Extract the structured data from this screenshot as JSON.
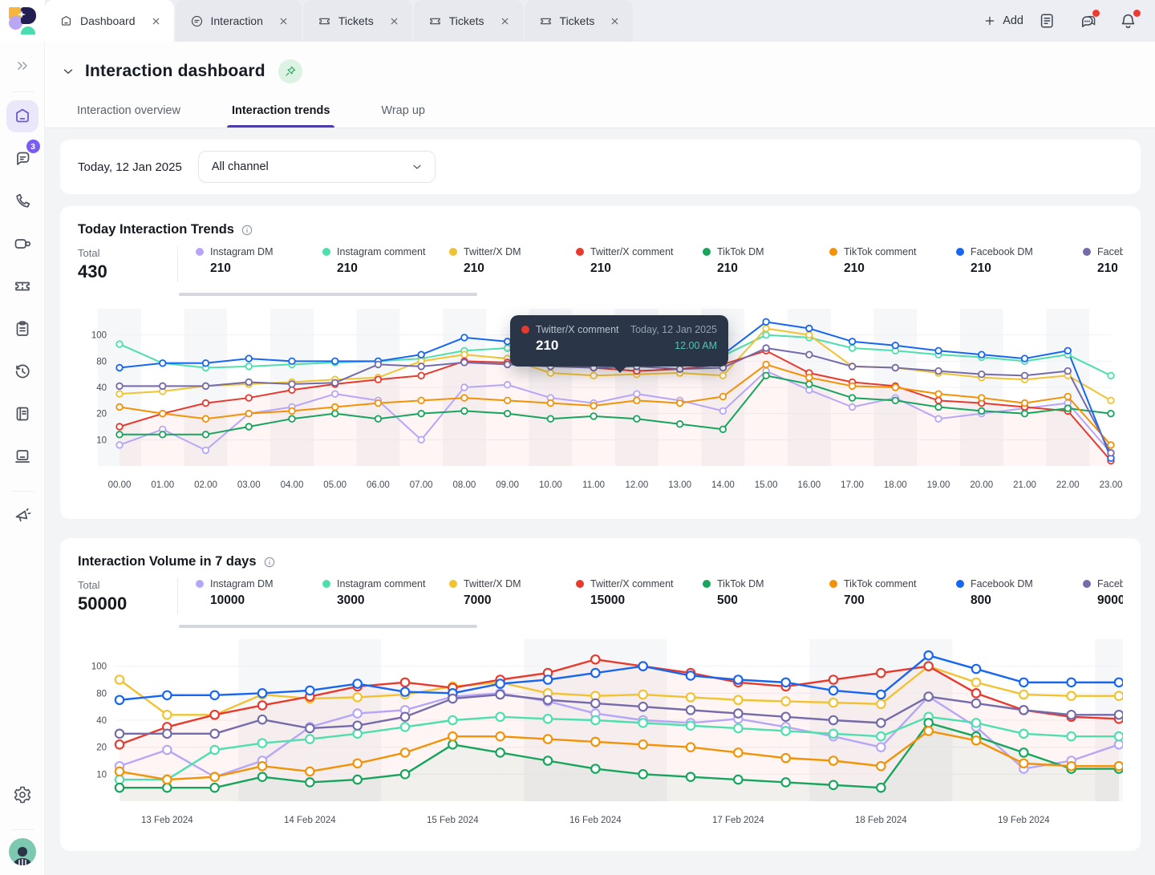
{
  "topbar": {
    "tabs": [
      {
        "label": "Dashboard",
        "icon": "home",
        "active": true
      },
      {
        "label": "Interaction",
        "icon": "chat",
        "active": false
      },
      {
        "label": "Tickets",
        "icon": "ticket",
        "active": false
      },
      {
        "label": "Tickets",
        "icon": "ticket",
        "active": false
      },
      {
        "label": "Tickets",
        "icon": "ticket",
        "active": false
      }
    ],
    "add_label": "Add",
    "right_icons": [
      {
        "name": "notes-icon",
        "badge": false
      },
      {
        "name": "messages-icon",
        "badge": true
      },
      {
        "name": "notifications-icon",
        "badge": true
      }
    ]
  },
  "sidebar": {
    "chat_badge_count": "3"
  },
  "page": {
    "title": "Interaction dashboard",
    "tabs": [
      {
        "label": "Interaction overview",
        "active": false
      },
      {
        "label": "Interaction trends",
        "active": true
      },
      {
        "label": "Wrap up",
        "active": false
      }
    ],
    "filter_date": "Today, 12 Jan 2025",
    "channel_select": "All channel"
  },
  "chart_data": [
    {
      "type": "line",
      "title": "Today Interaction Trends",
      "total_label": "Total",
      "total": "430",
      "yticks": [
        10,
        20,
        40,
        80,
        100
      ],
      "n_points": 24,
      "x": [
        "00.00",
        "01.00",
        "02.00",
        "03.00",
        "04.00",
        "05.00",
        "06.00",
        "07.00",
        "08.00",
        "09.00",
        "10.00",
        "11.00",
        "12.00",
        "13.00",
        "14.00",
        "15.00",
        "16.00",
        "17.00",
        "18.00",
        "19.00",
        "20.00",
        "21.00",
        "22.00",
        "23.00"
      ],
      "legend_position": "top",
      "series": [
        {
          "name": "Instagram DM",
          "color": "#b7a6f7",
          "total": "210",
          "values": [
            8,
            14,
            6,
            20,
            25,
            35,
            30,
            10,
            40,
            44,
            32,
            28,
            35,
            30,
            22,
            65,
            38,
            25,
            32,
            18,
            20,
            24,
            28,
            5
          ]
        },
        {
          "name": "Instagram comment",
          "color": "#4fdfae",
          "total": "210",
          "values": [
            93,
            77,
            70,
            72,
            75,
            78,
            80,
            82,
            88,
            90,
            85,
            82,
            85,
            83,
            84,
            100,
            98,
            90,
            88,
            85,
            83,
            80,
            85,
            58
          ]
        },
        {
          "name": "Twitter/X DM",
          "color": "#f1c232",
          "total": "210",
          "values": [
            35,
            37,
            42,
            45,
            48,
            52,
            55,
            80,
            85,
            82,
            62,
            58,
            60,
            62,
            58,
            105,
            100,
            72,
            70,
            62,
            55,
            52,
            58,
            30
          ]
        },
        {
          "name": "Twitter/X comment",
          "color": "#e73a2e",
          "total": "210",
          "area": true,
          "values": [
            15,
            20,
            28,
            32,
            38,
            45,
            52,
            58,
            80,
            78,
            75,
            70,
            65,
            68,
            75,
            88,
            62,
            48,
            42,
            30,
            28,
            25,
            22,
            2
          ]
        },
        {
          "name": "TikTok DM",
          "color": "#17a45c",
          "total": "210",
          "values": [
            12,
            12,
            12,
            15,
            18,
            20,
            18,
            20,
            22,
            20,
            18,
            19,
            18,
            16,
            14,
            58,
            45,
            32,
            30,
            25,
            22,
            20,
            24,
            20
          ]
        },
        {
          "name": "TikTok comment",
          "color": "#f29206",
          "total": "210",
          "values": [
            25,
            20,
            18,
            20,
            22,
            25,
            28,
            30,
            32,
            30,
            28,
            26,
            30,
            28,
            33,
            75,
            55,
            42,
            40,
            35,
            32,
            28,
            33,
            8
          ]
        },
        {
          "name": "Facebook DM",
          "color": "#1766f2",
          "total": "210",
          "values": [
            70,
            77,
            77,
            82,
            80,
            80,
            80,
            85,
            98,
            95,
            88,
            85,
            88,
            85,
            85,
            110,
            105,
            95,
            92,
            88,
            85,
            82,
            88,
            3
          ]
        },
        {
          "name": "Facebook comment",
          "color": "#756aaa",
          "total": "210",
          "values": [
            42,
            42,
            42,
            48,
            45,
            47,
            75,
            72,
            78,
            75,
            72,
            70,
            72,
            68,
            70,
            90,
            85,
            72,
            70,
            65,
            60,
            58,
            65,
            5
          ]
        }
      ],
      "tooltip": {
        "series": "Twitter/X comment",
        "value": "210",
        "date": "Today,  12 Jan 2025",
        "time": "12.00 AM",
        "x_index": 12
      }
    },
    {
      "type": "line",
      "title": "Interaction Volume in 7 days",
      "total_label": "Total",
      "total": "50000",
      "yticks": [
        10,
        20,
        40,
        80,
        100
      ],
      "n_points": 22,
      "x_labels": [
        "13 Feb 2024",
        "14 Feb 2024",
        "15 Feb 2024",
        "16 Feb 2024",
        "17 Feb 2024",
        "18 Feb 2024",
        "19 Feb 2024"
      ],
      "label_indices": [
        1,
        4,
        7,
        10,
        13,
        16,
        19
      ],
      "legend_position": "top",
      "series": [
        {
          "name": "Instagram DM",
          "color": "#b7a6f7",
          "total": "10000",
          "values": [
            13,
            19,
            9,
            15,
            35,
            50,
            55,
            75,
            80,
            68,
            50,
            40,
            38,
            42,
            35,
            28,
            20,
            75,
            35,
            12,
            15,
            22
          ]
        },
        {
          "name": "Instagram comment",
          "color": "#4fdfae",
          "total": "3000",
          "values": [
            8,
            8,
            19,
            23,
            26,
            30,
            35,
            40,
            45,
            42,
            40,
            38,
            36,
            34,
            32,
            30,
            28,
            45,
            38,
            30,
            28,
            28
          ]
        },
        {
          "name": "Twitter/X DM",
          "color": "#f1c232",
          "total": "7000",
          "values": [
            90,
            48,
            48,
            78,
            72,
            74,
            78,
            85,
            88,
            80,
            76,
            78,
            74,
            70,
            68,
            66,
            64,
            100,
            88,
            78,
            76,
            76
          ]
        },
        {
          "name": "Twitter/X comment",
          "color": "#e73a2e",
          "total": "15000",
          "area": true,
          "values": [
            22,
            35,
            48,
            62,
            75,
            85,
            88,
            84,
            90,
            95,
            105,
            100,
            95,
            88,
            85,
            90,
            95,
            100,
            80,
            55,
            45,
            42
          ]
        },
        {
          "name": "TikTok DM",
          "color": "#17a45c",
          "total": "500",
          "area": true,
          "values": [
            5,
            5,
            5,
            9,
            7,
            8,
            10,
            22,
            18,
            15,
            12,
            10,
            9,
            8,
            7,
            6,
            5,
            38,
            28,
            18,
            12,
            12
          ]
        },
        {
          "name": "TikTok comment",
          "color": "#f29206",
          "total": "700",
          "values": [
            11,
            8,
            9,
            13,
            11,
            14,
            18,
            28,
            28,
            26,
            24,
            22,
            20,
            18,
            16,
            15,
            13,
            32,
            25,
            14,
            13,
            13
          ]
        },
        {
          "name": "Facebook DM",
          "color": "#1766f2",
          "total": "800",
          "values": [
            70,
            77,
            77,
            80,
            82,
            87,
            81,
            80,
            87,
            90,
            95,
            100,
            93,
            90,
            88,
            82,
            78,
            108,
            98,
            88,
            88,
            88
          ]
        },
        {
          "name": "Facebook comment",
          "color": "#756aaa",
          "total": "9000",
          "values": [
            30,
            30,
            30,
            41,
            34,
            36,
            45,
            72,
            78,
            70,
            65,
            60,
            55,
            50,
            45,
            40,
            38,
            75,
            65,
            55,
            48,
            48
          ]
        }
      ]
    }
  ]
}
